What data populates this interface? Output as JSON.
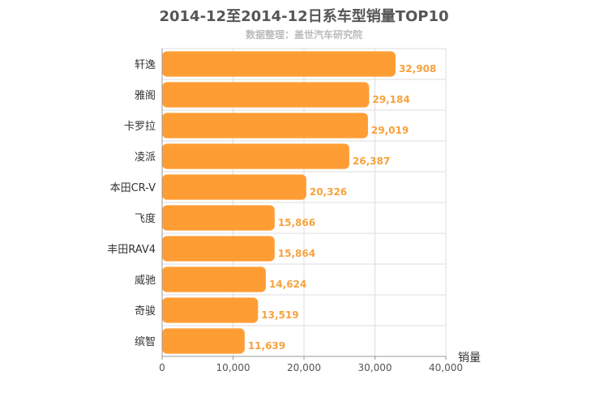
{
  "chart_data": {
    "type": "bar",
    "orientation": "horizontal",
    "title": "2014-12至2014-12日系车型销量TOP10",
    "subtitle": "数据整理：盖世汽车研究院",
    "xlabel": "销量",
    "xlim": [
      0,
      40000
    ],
    "x_ticks": [
      "0",
      "10,000",
      "20,000",
      "30,000",
      "40,000"
    ],
    "x_tick_values": [
      0,
      10000,
      20000,
      30000,
      40000
    ],
    "grid": true,
    "bar_color": "#ff9d35",
    "value_label_color": "#f7a23c",
    "categories": [
      "轩逸",
      "雅阁",
      "卡罗拉",
      "凌派",
      "本田CR-V",
      "飞度",
      "丰田RAV4",
      "威驰",
      "奇骏",
      "缤智"
    ],
    "values": [
      32908,
      29184,
      29019,
      26387,
      20326,
      15866,
      15864,
      14624,
      13519,
      11639
    ],
    "value_labels": [
      "32,908",
      "29,184",
      "29,019",
      "26,387",
      "20,326",
      "15,866",
      "15,864",
      "14,624",
      "13,519",
      "11,639"
    ]
  }
}
